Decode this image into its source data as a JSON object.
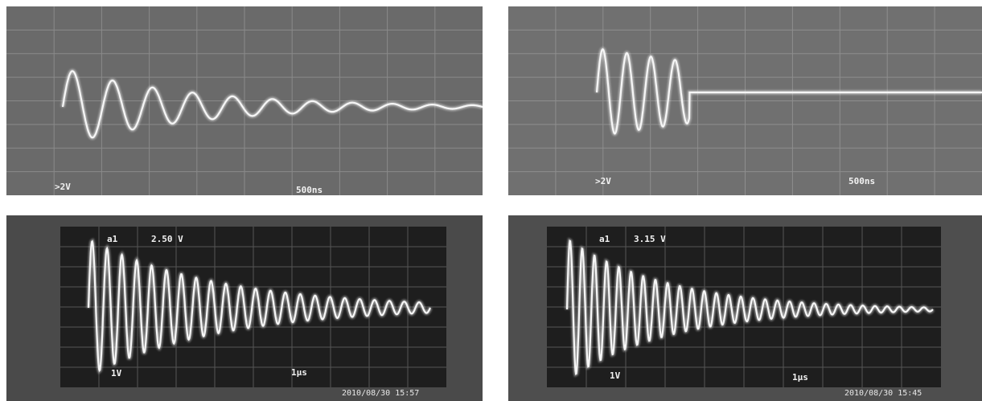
{
  "panels": [
    {
      "channel": ">2V",
      "timebase": "500ns"
    },
    {
      "channel": ">2V",
      "timebase": "500ns"
    },
    {
      "marker": "a1",
      "readout": "2.50 V",
      "ref": "1V",
      "timebase": "1μs",
      "timestamp": "2010/08/30 15:57"
    },
    {
      "marker": "a1",
      "readout": "3.15 V",
      "ref": "1V",
      "timebase": "1μs",
      "timestamp": "2010/08/30 15:45"
    }
  ]
}
